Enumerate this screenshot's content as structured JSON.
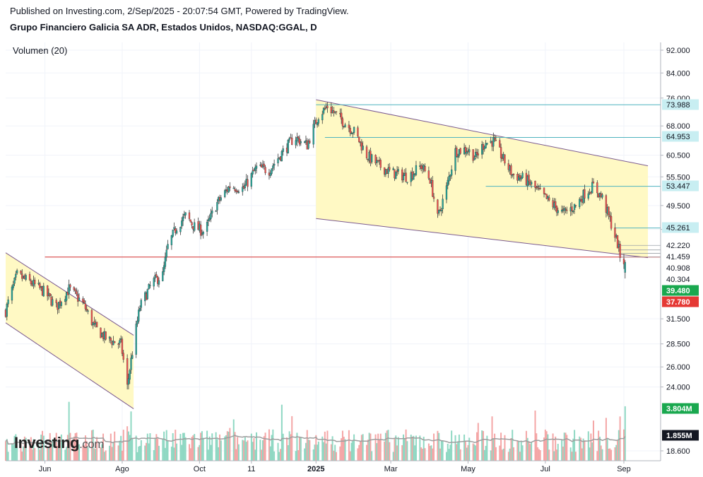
{
  "header": {
    "published": "Published on Investing.com, 2/Sep/2025 - 20:07:54 GMT, Powered by TradingView.",
    "instrument": "Grupo Financiero Galicia SA ADR, Estados Unidos, NASDAQ:GGAL, D"
  },
  "volume_label": "Volumen (20)",
  "brand": {
    "name": "Investing",
    "suffix": ".com"
  },
  "colors": {
    "up": "#26a69a",
    "down": "#ef5350",
    "up_volume": "#8fd8c3",
    "down_volume": "#f4a6a6",
    "channel_fill": "#fff9c4",
    "channel_line": "#7b5a8f",
    "support_line": "#d32f2f",
    "level_line": "#4fb3bf",
    "level_label_bg": "#c8eef2",
    "volume_ma": "#9e9e9e",
    "last_up_badge": "#1aa84f",
    "last_down_badge": "#e53935",
    "volume_badge": "#1aa84f",
    "volume_ma_badge": "#131722"
  },
  "chart_data": {
    "type": "candlestick",
    "scale": "log",
    "y_ticks": [
      "92.000",
      "84.000",
      "76.000",
      "68.000",
      "60.500",
      "55.500",
      "49.500",
      "45.000",
      "31.500",
      "28.500",
      "26.000",
      "24.000",
      "18.600"
    ],
    "y_tick_values": [
      92,
      84,
      76,
      68,
      60.5,
      55.5,
      49.5,
      45,
      31.5,
      28.5,
      26,
      24,
      18.6
    ],
    "x_ticks": [
      {
        "label": "Jun",
        "date": "2024-06-01",
        "bold": false
      },
      {
        "label": "Ago",
        "date": "2024-08-01",
        "bold": false
      },
      {
        "label": "Oct",
        "date": "2024-10-01",
        "bold": false
      },
      {
        "label": "11",
        "date": "2024-11-11",
        "bold": false
      },
      {
        "label": "2025",
        "date": "2025-01-01",
        "bold": true
      },
      {
        "label": "Mar",
        "date": "2025-03-01",
        "bold": false
      },
      {
        "label": "May",
        "date": "2025-05-01",
        "bold": false
      },
      {
        "label": "Jul",
        "date": "2025-07-01",
        "bold": false
      },
      {
        "label": "Sep",
        "date": "2025-09-01",
        "bold": false
      }
    ],
    "x_range": [
      "2024-05-01",
      "2025-09-30"
    ],
    "levels": [
      {
        "label": "73.988",
        "value": 73.988,
        "style": "level"
      },
      {
        "label": "64.953",
        "value": 64.953,
        "style": "level"
      },
      {
        "label": "53.447",
        "value": 53.447,
        "style": "level"
      },
      {
        "label": "45.261",
        "value": 45.261,
        "style": "level"
      },
      {
        "label": "42.220",
        "value": 42.22,
        "style": "plain"
      },
      {
        "label": "41.459",
        "value": 41.459,
        "style": "plain"
      },
      {
        "label": "40.908",
        "value": 40.908,
        "style": "plain"
      },
      {
        "label": "40.304",
        "value": 40.304,
        "style": "plain"
      }
    ],
    "last_price": {
      "label": "39.480",
      "value": 39.48
    },
    "prev_close": {
      "label": "37.780",
      "value": 37.78
    },
    "support": {
      "value": 40.304,
      "from": "2024-06-01",
      "to": "2025-09-30"
    },
    "channels": [
      {
        "upper": [
          [
            "2024-05-01",
            41.0
          ],
          [
            "2024-08-10",
            29.5
          ]
        ],
        "lower": [
          [
            "2024-05-01",
            31.0
          ],
          [
            "2024-08-10",
            22.0
          ]
        ]
      },
      {
        "upper": [
          [
            "2025-01-01",
            75.5
          ],
          [
            "2025-09-20",
            58.0
          ]
        ],
        "lower": [
          [
            "2025-01-01",
            47.0
          ],
          [
            "2025-09-20",
            40.2
          ]
        ]
      }
    ],
    "volume": {
      "last_label": "3.804M",
      "last_value": 3.804,
      "ma_label": "1.855M",
      "ma_value": 1.855,
      "max": 7.5
    },
    "series": [
      {
        "name": "GGAL",
        "points": [
          [
            "2024-05-01",
            32.5
          ],
          [
            "2024-05-10",
            37.5
          ],
          [
            "2024-05-20",
            36.5
          ],
          [
            "2024-06-01",
            35.0
          ],
          [
            "2024-06-10",
            33.0
          ],
          [
            "2024-06-20",
            35.5
          ],
          [
            "2024-07-01",
            33.5
          ],
          [
            "2024-07-10",
            30.5
          ],
          [
            "2024-07-20",
            29.0
          ],
          [
            "2024-07-31",
            28.5
          ],
          [
            "2024-08-05",
            24.0
          ],
          [
            "2024-08-10",
            28.5
          ],
          [
            "2024-08-15",
            33.0
          ],
          [
            "2024-08-25",
            36.5
          ],
          [
            "2024-09-02",
            37.5
          ],
          [
            "2024-09-06",
            42.0
          ],
          [
            "2024-09-13",
            45.5
          ],
          [
            "2024-09-20",
            47.5
          ],
          [
            "2024-09-27",
            45.5
          ],
          [
            "2024-10-05",
            44.5
          ],
          [
            "2024-10-15",
            50.0
          ],
          [
            "2024-10-25",
            53.5
          ],
          [
            "2024-11-05",
            53.0
          ],
          [
            "2024-11-15",
            57.5
          ],
          [
            "2024-11-25",
            57.0
          ],
          [
            "2024-12-05",
            61.0
          ],
          [
            "2024-12-15",
            65.0
          ],
          [
            "2024-12-25",
            63.0
          ],
          [
            "2025-01-03",
            71.0
          ],
          [
            "2025-01-10",
            73.5
          ],
          [
            "2025-01-20",
            70.0
          ],
          [
            "2025-01-31",
            66.5
          ],
          [
            "2025-02-10",
            60.5
          ],
          [
            "2025-02-20",
            58.0
          ],
          [
            "2025-03-01",
            56.5
          ],
          [
            "2025-03-15",
            55.5
          ],
          [
            "2025-03-25",
            58.0
          ],
          [
            "2025-04-01",
            55.0
          ],
          [
            "2025-04-07",
            47.0
          ],
          [
            "2025-04-14",
            53.0
          ],
          [
            "2025-04-21",
            61.5
          ],
          [
            "2025-04-30",
            62.0
          ],
          [
            "2025-05-07",
            60.0
          ],
          [
            "2025-05-14",
            63.5
          ],
          [
            "2025-05-21",
            64.0
          ],
          [
            "2025-05-28",
            60.0
          ],
          [
            "2025-06-05",
            56.0
          ],
          [
            "2025-06-15",
            55.0
          ],
          [
            "2025-06-25",
            52.5
          ],
          [
            "2025-07-05",
            50.0
          ],
          [
            "2025-07-15",
            48.0
          ],
          [
            "2025-07-25",
            49.5
          ],
          [
            "2025-08-01",
            52.0
          ],
          [
            "2025-08-08",
            53.5
          ],
          [
            "2025-08-15",
            51.0
          ],
          [
            "2025-08-22",
            46.0
          ],
          [
            "2025-08-27",
            42.5
          ],
          [
            "2025-08-29",
            40.5
          ],
          [
            "2025-09-02",
            39.48
          ]
        ]
      }
    ]
  }
}
